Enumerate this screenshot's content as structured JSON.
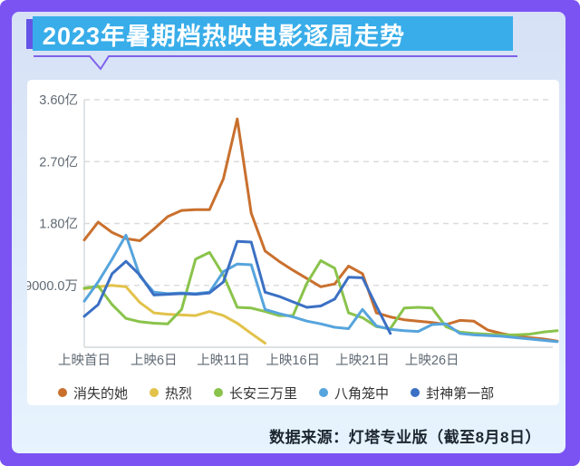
{
  "title": "2023年暑期档热映电影逐周走势",
  "footer": {
    "source_note": "数据来源：灯塔专业版（截至8月8日）"
  },
  "colors": {
    "frame_purple": "#7b53f2",
    "accent_purple": "#6454e6",
    "underline_purple": "#7e62ea",
    "banner_blue": "#38ade9",
    "panel_top": "#d7e1f6",
    "panel_bottom": "#e7f3fd",
    "card_bg": "#ffffff",
    "grid_line": "#dcdcdc",
    "axis_line": "#d3d7dc",
    "axis_text": "#606a74",
    "legend_text": "#333333",
    "source_text": "#1c2630"
  },
  "chart_data": {
    "type": "line",
    "title": "2023年暑期档热映电影逐周走势",
    "x_axis": {
      "meaning": "days since theatrical release",
      "tick_labels": [
        "上映首日",
        "上映6日",
        "上映11日",
        "上映16日",
        "上映21日",
        "上映26日"
      ],
      "tick_days": [
        1,
        6,
        11,
        16,
        21,
        26
      ],
      "max_day_shown": 35
    },
    "y_axis": {
      "meaning": "daily box office",
      "tick_labels": [
        "9000.0万",
        "1.80亿",
        "2.70亿",
        "3.60亿"
      ],
      "tick_values_yi": [
        0.9,
        1.8,
        2.7,
        3.6
      ],
      "range_yi": [
        0,
        3.88
      ]
    },
    "grid": {
      "horizontal_dashed": true,
      "vertical": false
    },
    "legend_position": "bottom",
    "unit_note": "values estimated from gridlines, in 亿 (100M CNY)",
    "series": [
      {
        "name": "消失的她",
        "color": "#c9702e",
        "values_yi": [
          1.56,
          1.82,
          1.67,
          1.58,
          1.55,
          1.72,
          1.9,
          1.99,
          2.0,
          2.0,
          2.45,
          3.32,
          1.95,
          1.4,
          1.25,
          1.12,
          1.0,
          0.88,
          0.92,
          1.18,
          1.07,
          0.5,
          0.44,
          0.4,
          0.38,
          0.36,
          0.33,
          0.39,
          0.38,
          0.25,
          0.2,
          0.16,
          0.14,
          0.12,
          0.09
        ]
      },
      {
        "name": "热烈",
        "color": "#e2c24a",
        "values_yi": [
          0.85,
          0.88,
          0.9,
          0.88,
          0.65,
          0.5,
          0.48,
          0.47,
          0.46,
          0.52,
          0.46,
          0.35,
          0.2,
          0.06
        ]
      },
      {
        "name": "长安三万里",
        "color": "#8ac34b",
        "values_yi": [
          0.86,
          0.89,
          0.62,
          0.42,
          0.37,
          0.35,
          0.34,
          0.55,
          1.28,
          1.38,
          1.05,
          0.58,
          0.57,
          0.52,
          0.46,
          0.46,
          0.93,
          1.26,
          1.15,
          0.5,
          0.43,
          0.3,
          0.27,
          0.57,
          0.58,
          0.57,
          0.3,
          0.22,
          0.2,
          0.19,
          0.18,
          0.18,
          0.19,
          0.22,
          0.24
        ]
      },
      {
        "name": "八角笼中",
        "color": "#56a4dd",
        "values_yi": [
          0.67,
          0.95,
          1.28,
          1.63,
          1.03,
          0.8,
          0.78,
          0.79,
          0.78,
          0.8,
          1.1,
          1.21,
          1.2,
          0.55,
          0.49,
          0.44,
          0.38,
          0.34,
          0.29,
          0.27,
          0.55,
          0.31,
          0.26,
          0.24,
          0.23,
          0.33,
          0.34,
          0.2,
          0.18,
          0.17,
          0.16,
          0.14,
          0.12,
          0.1,
          0.08
        ]
      },
      {
        "name": "封神第一部",
        "color": "#3b70c4",
        "values_yi": [
          0.45,
          0.62,
          1.07,
          1.25,
          1.05,
          0.76,
          0.77,
          0.78,
          0.77,
          0.79,
          0.95,
          1.54,
          1.53,
          0.8,
          0.74,
          0.66,
          0.58,
          0.6,
          0.7,
          1.02,
          1.01,
          0.6,
          0.2
        ]
      }
    ]
  }
}
